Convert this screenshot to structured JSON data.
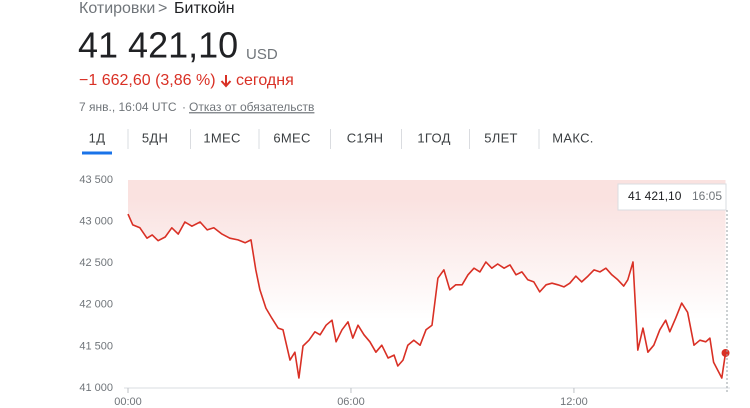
{
  "header": {
    "breadcrumb": [
      "Котировки",
      "Биткойн"
    ],
    "price": "41 421,10",
    "currency": "USD",
    "change": "−1 662,60 (3,86 %)",
    "period": "сегодня",
    "timestamp": "7 янв., 16:04 UTC",
    "disclaimer": "Отказ от обязательств"
  },
  "tabs": [
    "1Д",
    "5ДН",
    "1МЕС",
    "6МЕС",
    "С1ЯН",
    "1ГОД",
    "5ЛЕТ",
    "МАКС."
  ],
  "chart_data": {
    "type": "line",
    "color": "#d93025",
    "x": [
      0,
      0.13,
      0.32,
      0.51,
      0.65,
      0.81,
      1.0,
      1.18,
      1.35,
      1.53,
      1.72,
      1.94,
      2.13,
      2.31,
      2.53,
      2.74,
      2.96,
      3.15,
      3.31,
      3.44,
      3.55,
      3.71,
      3.87,
      4.04,
      4.17,
      4.36,
      4.49,
      4.6,
      4.71,
      4.87,
      5.03,
      5.17,
      5.33,
      5.49,
      5.6,
      5.76,
      5.92,
      6.05,
      6.19,
      6.35,
      6.51,
      6.67,
      6.83,
      7.0,
      7.16,
      7.26,
      7.4,
      7.53,
      7.69,
      7.86,
      8.02,
      8.18,
      8.34,
      8.5,
      8.66,
      8.82,
      8.99,
      9.15,
      9.31,
      9.47,
      9.63,
      9.79,
      9.95,
      10.12,
      10.28,
      10.44,
      10.6,
      10.76,
      10.92,
      11.08,
      11.25,
      11.41,
      11.57,
      11.73,
      11.89,
      12.05,
      12.21,
      12.38,
      12.54,
      12.7,
      12.86,
      13.02,
      13.18,
      13.34,
      13.45,
      13.59,
      13.72,
      13.86,
      13.99,
      14.15,
      14.31,
      14.47,
      14.58,
      14.74,
      14.9,
      15.06,
      15.23,
      15.39,
      15.55,
      15.66,
      15.76,
      15.87,
      15.98,
      16.08
    ],
    "values": [
      43090,
      42960,
      42925,
      42800,
      42840,
      42770,
      42815,
      42925,
      42850,
      42995,
      42945,
      42995,
      42900,
      42925,
      42850,
      42800,
      42780,
      42745,
      42780,
      42420,
      42180,
      41960,
      41840,
      41720,
      41700,
      41335,
      41430,
      41120,
      41505,
      41575,
      41675,
      41640,
      41755,
      41815,
      41555,
      41700,
      41795,
      41600,
      41755,
      41640,
      41555,
      41430,
      41515,
      41360,
      41395,
      41265,
      41335,
      41515,
      41575,
      41515,
      41700,
      41755,
      42320,
      42420,
      42180,
      42240,
      42240,
      42360,
      42440,
      42395,
      42515,
      42440,
      42490,
      42440,
      42480,
      42360,
      42395,
      42300,
      42275,
      42155,
      42240,
      42260,
      42240,
      42215,
      42260,
      42345,
      42275,
      42345,
      42420,
      42395,
      42440,
      42360,
      42300,
      42225,
      42300,
      42515,
      41455,
      41720,
      41430,
      41515,
      41700,
      41815,
      41675,
      41840,
      42020,
      41910,
      41515,
      41575,
      41555,
      41600,
      41310,
      41215,
      41120,
      41421.1
    ],
    "xlim": [
      0,
      16.2
    ],
    "xticks": [
      {
        "value": 0,
        "label": "00:00"
      },
      {
        "value": 6,
        "label": "06:00"
      },
      {
        "value": 12,
        "label": "12:00"
      }
    ],
    "ylim": [
      41000,
      43500
    ],
    "yticks": [
      {
        "value": 41000,
        "label": "41 000"
      },
      {
        "value": 41500,
        "label": "41 500"
      },
      {
        "value": 42000,
        "label": "42 000"
      },
      {
        "value": 42500,
        "label": "42 500"
      },
      {
        "value": 43000,
        "label": "43 000"
      },
      {
        "value": 43500,
        "label": "43 500"
      }
    ],
    "tooltip": {
      "value": "41 421,10",
      "time": "16:05"
    }
  }
}
